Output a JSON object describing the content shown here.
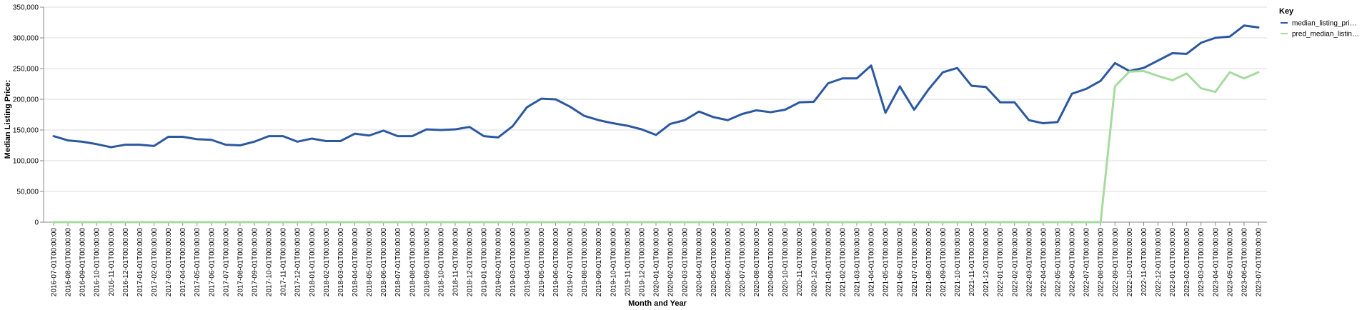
{
  "chart_data": {
    "type": "line",
    "xlabel": "Month and Year",
    "ylabel": "Median Listing Price:",
    "ylim": [
      0,
      350000
    ],
    "yticks": [
      "0",
      "50,000",
      "100,000",
      "150,000",
      "200,000",
      "250,000",
      "300,000",
      "350,000"
    ],
    "legend_title": "Key",
    "legend_position": "top-right",
    "x": [
      "2016-07-01T00:00:00",
      "2016-08-01T00:00:00",
      "2016-09-01T00:00:00",
      "2016-10-01T00:00:00",
      "2016-11-01T00:00:00",
      "2016-12-01T00:00:00",
      "2017-01-01T00:00:00",
      "2017-02-01T00:00:00",
      "2017-03-01T00:00:00",
      "2017-04-01T00:00:00",
      "2017-05-01T00:00:00",
      "2017-06-01T00:00:00",
      "2017-07-01T00:00:00",
      "2017-08-01T00:00:00",
      "2017-09-01T00:00:00",
      "2017-10-01T00:00:00",
      "2017-11-01T00:00:00",
      "2017-12-01T00:00:00",
      "2018-01-01T00:00:00",
      "2018-02-01T00:00:00",
      "2018-03-01T00:00:00",
      "2018-04-01T00:00:00",
      "2018-05-01T00:00:00",
      "2018-06-01T00:00:00",
      "2018-07-01T00:00:00",
      "2018-08-01T00:00:00",
      "2018-09-01T00:00:00",
      "2018-10-01T00:00:00",
      "2018-11-01T00:00:00",
      "2018-12-01T00:00:00",
      "2019-01-01T00:00:00",
      "2019-02-01T00:00:00",
      "2019-03-01T00:00:00",
      "2019-04-01T00:00:00",
      "2019-05-01T00:00:00",
      "2019-06-01T00:00:00",
      "2019-07-01T00:00:00",
      "2019-08-01T00:00:00",
      "2019-09-01T00:00:00",
      "2019-10-01T00:00:00",
      "2019-11-01T00:00:00",
      "2019-12-01T00:00:00",
      "2020-01-01T00:00:00",
      "2020-02-01T00:00:00",
      "2020-03-01T00:00:00",
      "2020-04-01T00:00:00",
      "2020-05-01T00:00:00",
      "2020-06-01T00:00:00",
      "2020-07-01T00:00:00",
      "2020-08-01T00:00:00",
      "2020-09-01T00:00:00",
      "2020-10-01T00:00:00",
      "2020-11-01T00:00:00",
      "2020-12-01T00:00:00",
      "2021-01-01T00:00:00",
      "2021-02-01T00:00:00",
      "2021-03-01T00:00:00",
      "2021-04-01T00:00:00",
      "2021-05-01T00:00:00",
      "2021-06-01T00:00:00",
      "2021-07-01T00:00:00",
      "2021-08-01T00:00:00",
      "2021-09-01T00:00:00",
      "2021-10-01T00:00:00",
      "2021-11-01T00:00:00",
      "2021-12-01T00:00:00",
      "2022-01-01T00:00:00",
      "2022-02-01T00:00:00",
      "2022-03-01T00:00:00",
      "2022-04-01T00:00:00",
      "2022-05-01T00:00:00",
      "2022-06-01T00:00:00",
      "2022-07-01T00:00:00",
      "2022-08-01T00:00:00",
      "2022-09-01T00:00:00",
      "2022-10-01T00:00:00",
      "2022-11-01T00:00:00",
      "2022-12-01T00:00:00",
      "2023-01-01T00:00:00",
      "2023-02-01T00:00:00",
      "2023-03-01T00:00:00",
      "2023-04-01T00:00:00",
      "2023-05-01T00:00:00",
      "2023-06-01T00:00:00",
      "2023-07-01T00:00:00"
    ],
    "series": [
      {
        "name": "median_listing_pri…",
        "color": "#2c58a0",
        "values": [
          140000,
          133000,
          131000,
          127000,
          122000,
          126000,
          126000,
          124000,
          139000,
          139000,
          135000,
          134000,
          126000,
          125000,
          131000,
          140000,
          140000,
          131000,
          136000,
          132000,
          132000,
          144000,
          141000,
          149000,
          140000,
          140000,
          151000,
          150000,
          151000,
          155000,
          140000,
          138000,
          156000,
          187000,
          201000,
          200000,
          188000,
          173000,
          166000,
          161000,
          157000,
          151000,
          142000,
          160000,
          166000,
          180000,
          171000,
          166000,
          176000,
          182000,
          179000,
          183000,
          195000,
          196000,
          226000,
          234000,
          234000,
          255000,
          178000,
          221000,
          183000,
          216000,
          244000,
          251000,
          222000,
          220000,
          195000,
          195000,
          166000,
          161000,
          163000,
          209000,
          217000,
          230000,
          259000,
          246000,
          251000,
          263000,
          275000,
          274000,
          292000,
          300000,
          302000,
          320000,
          317000
        ]
      },
      {
        "name": "pred_median_listin…",
        "color": "#a6dba0",
        "values": [
          0,
          0,
          0,
          0,
          0,
          0,
          0,
          0,
          0,
          0,
          0,
          0,
          0,
          0,
          0,
          0,
          0,
          0,
          0,
          0,
          0,
          0,
          0,
          0,
          0,
          0,
          0,
          0,
          0,
          0,
          0,
          0,
          0,
          0,
          0,
          0,
          0,
          0,
          0,
          0,
          0,
          0,
          0,
          0,
          0,
          0,
          0,
          0,
          0,
          0,
          0,
          0,
          0,
          0,
          0,
          0,
          0,
          0,
          0,
          0,
          0,
          0,
          0,
          0,
          0,
          0,
          0,
          0,
          0,
          0,
          0,
          0,
          0,
          0,
          221000,
          245000,
          246000,
          238000,
          231000,
          242000,
          218000,
          212000,
          244000,
          234000,
          244000
        ]
      }
    ]
  }
}
